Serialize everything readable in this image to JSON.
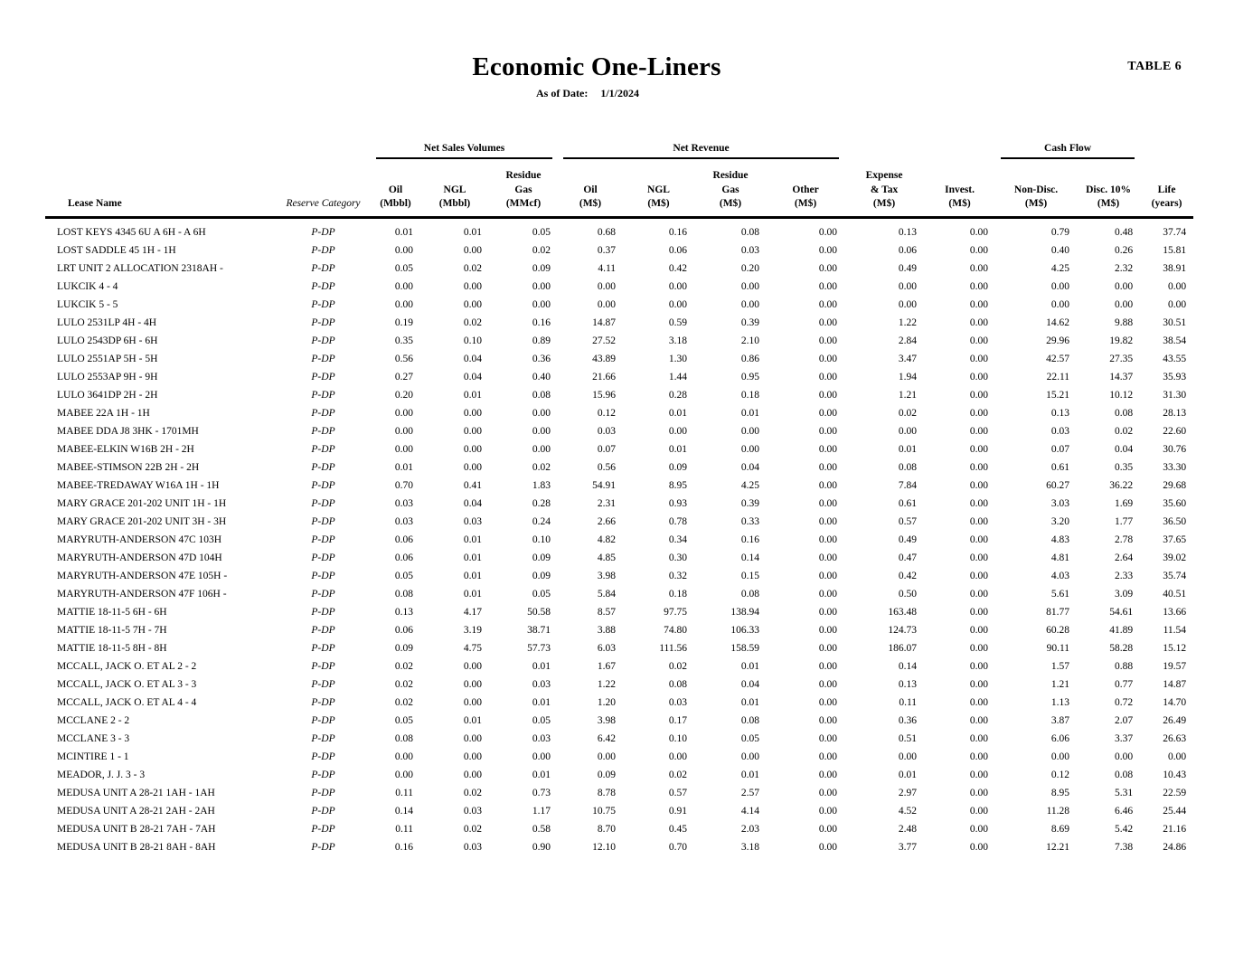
{
  "page": {
    "table_label": "TABLE 6",
    "title": "Economic One-Liners",
    "as_of_date_label": "As of Date:",
    "as_of_date_value": "1/1/2024"
  },
  "table": {
    "column_groups": [
      {
        "label": "Net Sales Volumes"
      },
      {
        "label": "Net Revenue"
      },
      {
        "label": "Cash Flow"
      }
    ],
    "columns": [
      {
        "key": "lease_name",
        "lines": [
          "Lease Name"
        ],
        "align": "left",
        "italic": false
      },
      {
        "key": "reserve_category",
        "lines": [
          "Reserve Category"
        ],
        "align": "center",
        "italic": true
      },
      {
        "key": "oil_mbbl",
        "lines": [
          "Oil",
          "(Mbbl)"
        ]
      },
      {
        "key": "ngl_mbbl",
        "lines": [
          "NGL",
          "(Mbbl)"
        ]
      },
      {
        "key": "residue_gas_mmcf",
        "lines": [
          "Residue",
          "Gas",
          "(MMcf)"
        ]
      },
      {
        "key": "oil_ms",
        "lines": [
          "Oil",
          "(M$)"
        ]
      },
      {
        "key": "ngl_ms",
        "lines": [
          "NGL",
          "(M$)"
        ]
      },
      {
        "key": "residue_gas_ms",
        "lines": [
          "Residue",
          "Gas",
          "(M$)"
        ]
      },
      {
        "key": "other_ms",
        "lines": [
          "Other",
          "(M$)"
        ]
      },
      {
        "key": "expense_tax_ms",
        "lines": [
          "Expense",
          "& Tax",
          "(M$)"
        ]
      },
      {
        "key": "invest_ms",
        "lines": [
          "Invest.",
          "(M$)"
        ]
      },
      {
        "key": "non_disc_ms",
        "lines": [
          "Non-Disc.",
          "(M$)"
        ]
      },
      {
        "key": "disc_10_ms",
        "lines": [
          "Disc. 10%",
          "(M$)"
        ]
      },
      {
        "key": "life_years",
        "lines": [
          "Life",
          "(years)"
        ]
      }
    ],
    "rows": [
      {
        "lease_name": "LOST KEYS 4345 6U A 6H - A 6H",
        "reserve_category": "P-DP",
        "values": [
          "0.01",
          "0.01",
          "0.05",
          "0.68",
          "0.16",
          "0.08",
          "0.00",
          "0.13",
          "0.00",
          "0.79",
          "0.48",
          "37.74"
        ]
      },
      {
        "lease_name": "LOST SADDLE 45 1H - 1H",
        "reserve_category": "P-DP",
        "values": [
          "0.00",
          "0.00",
          "0.02",
          "0.37",
          "0.06",
          "0.03",
          "0.00",
          "0.06",
          "0.00",
          "0.40",
          "0.26",
          "15.81"
        ]
      },
      {
        "lease_name": "LRT UNIT 2 ALLOCATION 2318AH -",
        "reserve_category": "P-DP",
        "values": [
          "0.05",
          "0.02",
          "0.09",
          "4.11",
          "0.42",
          "0.20",
          "0.00",
          "0.49",
          "0.00",
          "4.25",
          "2.32",
          "38.91"
        ]
      },
      {
        "lease_name": "LUKCIK 4 - 4",
        "reserve_category": "P-DP",
        "values": [
          "0.00",
          "0.00",
          "0.00",
          "0.00",
          "0.00",
          "0.00",
          "0.00",
          "0.00",
          "0.00",
          "0.00",
          "0.00",
          "0.00"
        ]
      },
      {
        "lease_name": "LUKCIK 5 - 5",
        "reserve_category": "P-DP",
        "values": [
          "0.00",
          "0.00",
          "0.00",
          "0.00",
          "0.00",
          "0.00",
          "0.00",
          "0.00",
          "0.00",
          "0.00",
          "0.00",
          "0.00"
        ]
      },
      {
        "lease_name": "LULO 2531LP 4H - 4H",
        "reserve_category": "P-DP",
        "values": [
          "0.19",
          "0.02",
          "0.16",
          "14.87",
          "0.59",
          "0.39",
          "0.00",
          "1.22",
          "0.00",
          "14.62",
          "9.88",
          "30.51"
        ]
      },
      {
        "lease_name": "LULO 2543DP 6H - 6H",
        "reserve_category": "P-DP",
        "values": [
          "0.35",
          "0.10",
          "0.89",
          "27.52",
          "3.18",
          "2.10",
          "0.00",
          "2.84",
          "0.00",
          "29.96",
          "19.82",
          "38.54"
        ]
      },
      {
        "lease_name": "LULO 2551AP 5H - 5H",
        "reserve_category": "P-DP",
        "values": [
          "0.56",
          "0.04",
          "0.36",
          "43.89",
          "1.30",
          "0.86",
          "0.00",
          "3.47",
          "0.00",
          "42.57",
          "27.35",
          "43.55"
        ]
      },
      {
        "lease_name": "LULO 2553AP 9H - 9H",
        "reserve_category": "P-DP",
        "values": [
          "0.27",
          "0.04",
          "0.40",
          "21.66",
          "1.44",
          "0.95",
          "0.00",
          "1.94",
          "0.00",
          "22.11",
          "14.37",
          "35.93"
        ]
      },
      {
        "lease_name": "LULO 3641DP 2H - 2H",
        "reserve_category": "P-DP",
        "values": [
          "0.20",
          "0.01",
          "0.08",
          "15.96",
          "0.28",
          "0.18",
          "0.00",
          "1.21",
          "0.00",
          "15.21",
          "10.12",
          "31.30"
        ]
      },
      {
        "lease_name": "MABEE 22A 1H - 1H",
        "reserve_category": "P-DP",
        "values": [
          "0.00",
          "0.00",
          "0.00",
          "0.12",
          "0.01",
          "0.01",
          "0.00",
          "0.02",
          "0.00",
          "0.13",
          "0.08",
          "28.13"
        ]
      },
      {
        "lease_name": "MABEE DDA J8 3HK - 1701MH",
        "reserve_category": "P-DP",
        "values": [
          "0.00",
          "0.00",
          "0.00",
          "0.03",
          "0.00",
          "0.00",
          "0.00",
          "0.00",
          "0.00",
          "0.03",
          "0.02",
          "22.60"
        ]
      },
      {
        "lease_name": "MABEE-ELKIN W16B 2H - 2H",
        "reserve_category": "P-DP",
        "values": [
          "0.00",
          "0.00",
          "0.00",
          "0.07",
          "0.01",
          "0.00",
          "0.00",
          "0.01",
          "0.00",
          "0.07",
          "0.04",
          "30.76"
        ]
      },
      {
        "lease_name": "MABEE-STIMSON 22B 2H - 2H",
        "reserve_category": "P-DP",
        "values": [
          "0.01",
          "0.00",
          "0.02",
          "0.56",
          "0.09",
          "0.04",
          "0.00",
          "0.08",
          "0.00",
          "0.61",
          "0.35",
          "33.30"
        ]
      },
      {
        "lease_name": "MABEE-TREDAWAY W16A 1H - 1H",
        "reserve_category": "P-DP",
        "values": [
          "0.70",
          "0.41",
          "1.83",
          "54.91",
          "8.95",
          "4.25",
          "0.00",
          "7.84",
          "0.00",
          "60.27",
          "36.22",
          "29.68"
        ]
      },
      {
        "lease_name": "MARY GRACE 201-202 UNIT 1H - 1H",
        "reserve_category": "P-DP",
        "values": [
          "0.03",
          "0.04",
          "0.28",
          "2.31",
          "0.93",
          "0.39",
          "0.00",
          "0.61",
          "0.00",
          "3.03",
          "1.69",
          "35.60"
        ]
      },
      {
        "lease_name": "MARY GRACE 201-202 UNIT 3H - 3H",
        "reserve_category": "P-DP",
        "values": [
          "0.03",
          "0.03",
          "0.24",
          "2.66",
          "0.78",
          "0.33",
          "0.00",
          "0.57",
          "0.00",
          "3.20",
          "1.77",
          "36.50"
        ]
      },
      {
        "lease_name": "MARYRUTH-ANDERSON 47C 103H",
        "reserve_category": "P-DP",
        "values": [
          "0.06",
          "0.01",
          "0.10",
          "4.82",
          "0.34",
          "0.16",
          "0.00",
          "0.49",
          "0.00",
          "4.83",
          "2.78",
          "37.65"
        ]
      },
      {
        "lease_name": "MARYRUTH-ANDERSON 47D 104H",
        "reserve_category": "P-DP",
        "values": [
          "0.06",
          "0.01",
          "0.09",
          "4.85",
          "0.30",
          "0.14",
          "0.00",
          "0.47",
          "0.00",
          "4.81",
          "2.64",
          "39.02"
        ]
      },
      {
        "lease_name": "MARYRUTH-ANDERSON 47E 105H -",
        "reserve_category": "P-DP",
        "values": [
          "0.05",
          "0.01",
          "0.09",
          "3.98",
          "0.32",
          "0.15",
          "0.00",
          "0.42",
          "0.00",
          "4.03",
          "2.33",
          "35.74"
        ]
      },
      {
        "lease_name": "MARYRUTH-ANDERSON 47F 106H -",
        "reserve_category": "P-DP",
        "values": [
          "0.08",
          "0.01",
          "0.05",
          "5.84",
          "0.18",
          "0.08",
          "0.00",
          "0.50",
          "0.00",
          "5.61",
          "3.09",
          "40.51"
        ]
      },
      {
        "lease_name": "MATTIE 18-11-5 6H - 6H",
        "reserve_category": "P-DP",
        "values": [
          "0.13",
          "4.17",
          "50.58",
          "8.57",
          "97.75",
          "138.94",
          "0.00",
          "163.48",
          "0.00",
          "81.77",
          "54.61",
          "13.66"
        ]
      },
      {
        "lease_name": "MATTIE 18-11-5 7H - 7H",
        "reserve_category": "P-DP",
        "values": [
          "0.06",
          "3.19",
          "38.71",
          "3.88",
          "74.80",
          "106.33",
          "0.00",
          "124.73",
          "0.00",
          "60.28",
          "41.89",
          "11.54"
        ]
      },
      {
        "lease_name": "MATTIE 18-11-5 8H - 8H",
        "reserve_category": "P-DP",
        "values": [
          "0.09",
          "4.75",
          "57.73",
          "6.03",
          "111.56",
          "158.59",
          "0.00",
          "186.07",
          "0.00",
          "90.11",
          "58.28",
          "15.12"
        ]
      },
      {
        "lease_name": "MCCALL, JACK O. ET AL 2 - 2",
        "reserve_category": "P-DP",
        "values": [
          "0.02",
          "0.00",
          "0.01",
          "1.67",
          "0.02",
          "0.01",
          "0.00",
          "0.14",
          "0.00",
          "1.57",
          "0.88",
          "19.57"
        ]
      },
      {
        "lease_name": "MCCALL, JACK O. ET AL 3 - 3",
        "reserve_category": "P-DP",
        "values": [
          "0.02",
          "0.00",
          "0.03",
          "1.22",
          "0.08",
          "0.04",
          "0.00",
          "0.13",
          "0.00",
          "1.21",
          "0.77",
          "14.87"
        ]
      },
      {
        "lease_name": "MCCALL, JACK O. ET AL 4 - 4",
        "reserve_category": "P-DP",
        "values": [
          "0.02",
          "0.00",
          "0.01",
          "1.20",
          "0.03",
          "0.01",
          "0.00",
          "0.11",
          "0.00",
          "1.13",
          "0.72",
          "14.70"
        ]
      },
      {
        "lease_name": "MCCLANE 2 - 2",
        "reserve_category": "P-DP",
        "values": [
          "0.05",
          "0.01",
          "0.05",
          "3.98",
          "0.17",
          "0.08",
          "0.00",
          "0.36",
          "0.00",
          "3.87",
          "2.07",
          "26.49"
        ]
      },
      {
        "lease_name": "MCCLANE 3 - 3",
        "reserve_category": "P-DP",
        "values": [
          "0.08",
          "0.00",
          "0.03",
          "6.42",
          "0.10",
          "0.05",
          "0.00",
          "0.51",
          "0.00",
          "6.06",
          "3.37",
          "26.63"
        ]
      },
      {
        "lease_name": "MCINTIRE 1 - 1",
        "reserve_category": "P-DP",
        "values": [
          "0.00",
          "0.00",
          "0.00",
          "0.00",
          "0.00",
          "0.00",
          "0.00",
          "0.00",
          "0.00",
          "0.00",
          "0.00",
          "0.00"
        ]
      },
      {
        "lease_name": "MEADOR, J. J. 3 - 3",
        "reserve_category": "P-DP",
        "values": [
          "0.00",
          "0.00",
          "0.01",
          "0.09",
          "0.02",
          "0.01",
          "0.00",
          "0.01",
          "0.00",
          "0.12",
          "0.08",
          "10.43"
        ]
      },
      {
        "lease_name": "MEDUSA UNIT A 28-21 1AH - 1AH",
        "reserve_category": "P-DP",
        "values": [
          "0.11",
          "0.02",
          "0.73",
          "8.78",
          "0.57",
          "2.57",
          "0.00",
          "2.97",
          "0.00",
          "8.95",
          "5.31",
          "22.59"
        ]
      },
      {
        "lease_name": "MEDUSA UNIT A 28-21 2AH - 2AH",
        "reserve_category": "P-DP",
        "values": [
          "0.14",
          "0.03",
          "1.17",
          "10.75",
          "0.91",
          "4.14",
          "0.00",
          "4.52",
          "0.00",
          "11.28",
          "6.46",
          "25.44"
        ]
      },
      {
        "lease_name": "MEDUSA UNIT B 28-21 7AH - 7AH",
        "reserve_category": "P-DP",
        "values": [
          "0.11",
          "0.02",
          "0.58",
          "8.70",
          "0.45",
          "2.03",
          "0.00",
          "2.48",
          "0.00",
          "8.69",
          "5.42",
          "21.16"
        ]
      },
      {
        "lease_name": "MEDUSA UNIT B 28-21 8AH - 8AH",
        "reserve_category": "P-DP",
        "values": [
          "0.16",
          "0.03",
          "0.90",
          "12.10",
          "0.70",
          "3.18",
          "0.00",
          "3.77",
          "0.00",
          "12.21",
          "7.38",
          "24.86"
        ]
      }
    ]
  }
}
